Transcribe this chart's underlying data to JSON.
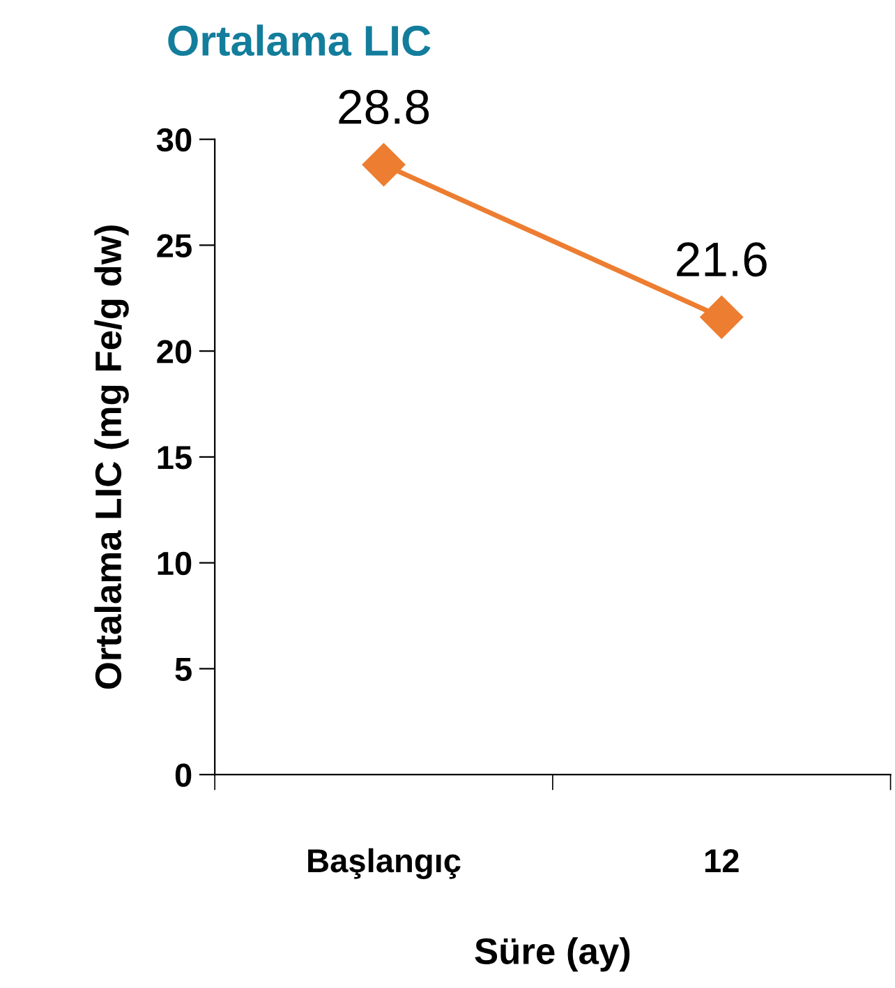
{
  "chart_data": {
    "type": "line",
    "title": "Ortalama LIC",
    "xlabel": "Süre (ay)",
    "ylabel": "Ortalama LIC (mg Fe/g dw)",
    "categories": [
      "Başlangıç",
      "12"
    ],
    "series": [
      {
        "color": "#ed7d31",
        "values": [
          28.8,
          21.6
        ]
      }
    ],
    "ylim": [
      0,
      30
    ],
    "yticks": [
      0,
      5,
      10,
      15,
      20,
      25,
      30
    ],
    "grid": false,
    "marker": "diamond",
    "line_style": "solid",
    "data_labels": true
  }
}
